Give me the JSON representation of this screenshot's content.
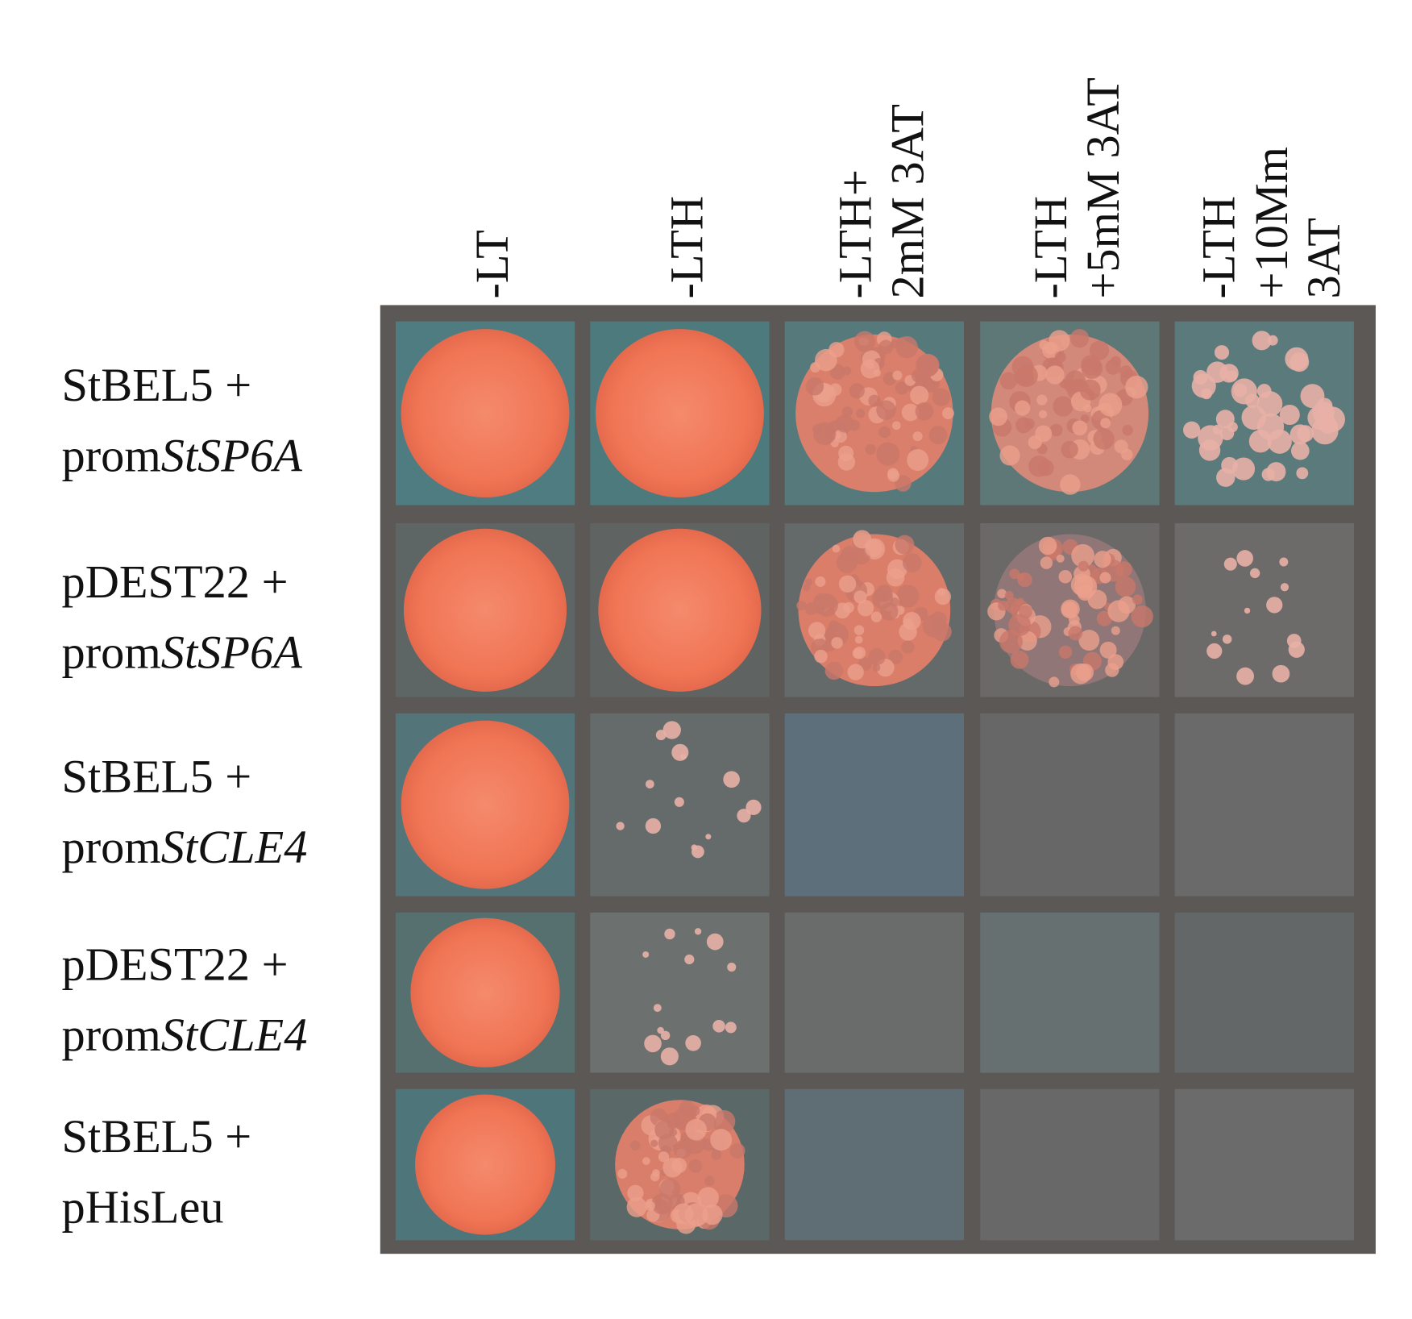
{
  "columns": [
    {
      "lines": [
        "-LT"
      ]
    },
    {
      "lines": [
        "-LTH"
      ]
    },
    {
      "lines": [
        "-LTH+",
        "2mM 3AT"
      ]
    },
    {
      "lines": [
        "-LTH",
        "+5mM 3AT"
      ]
    },
    {
      "lines": [
        "-LTH",
        "+10Mm",
        "3AT"
      ]
    }
  ],
  "rows": [
    {
      "line1": "StBEL5 +",
      "line2": "prom",
      "line2_italic": "StSP6A"
    },
    {
      "line1": "pDEST22 +",
      "line2": "prom",
      "line2_italic": "StSP6A"
    },
    {
      "line1": "StBEL5 +",
      "line2": "prom",
      "line2_italic": "StCLE4"
    },
    {
      "line1": "pDEST22 +",
      "line2": "prom",
      "line2_italic": "StCLE4"
    },
    {
      "line1": "StBEL5 +",
      "line2": "pHisLeu"
    }
  ]
}
